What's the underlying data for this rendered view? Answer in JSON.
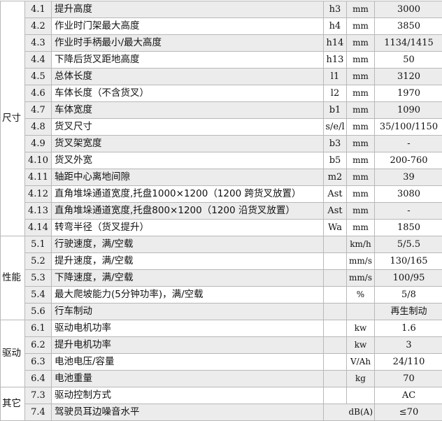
{
  "groups": [
    {
      "label": "尺寸",
      "rows": [
        {
          "no": "4.1",
          "desc": "提升高度",
          "sym": "h3",
          "unit": "mm",
          "val": "3000"
        },
        {
          "no": "4.2",
          "desc": "作业时门架最大高度",
          "sym": "h4",
          "unit": "mm",
          "val": "3850"
        },
        {
          "no": "4.3",
          "desc": "作业时手柄最小/最大高度",
          "sym": "h14",
          "unit": "mm",
          "val": "1134/1415"
        },
        {
          "no": "4.4",
          "desc": "下降后货叉距地高度",
          "sym": "h13",
          "unit": "mm",
          "val": "50"
        },
        {
          "no": "4.5",
          "desc": "总体长度",
          "sym": "l1",
          "unit": "mm",
          "val": "3120"
        },
        {
          "no": "4.6",
          "desc": "车体长度（不含货叉）",
          "sym": "l2",
          "unit": "mm",
          "val": "1970"
        },
        {
          "no": "4.7",
          "desc": "车体宽度",
          "sym": "b1",
          "unit": "mm",
          "val": "1090"
        },
        {
          "no": "4.8",
          "desc": "货叉尺寸",
          "sym": "s/e/l",
          "unit": "mm",
          "val": "35/100/1150"
        },
        {
          "no": "4.9",
          "desc": "货叉架宽度",
          "sym": "b3",
          "unit": "mm",
          "val": "-"
        },
        {
          "no": "4.10",
          "desc": "货叉外宽",
          "sym": "b5",
          "unit": "mm",
          "val": "200-760"
        },
        {
          "no": "4.11",
          "desc": "轴距中心离地间隙",
          "sym": "m2",
          "unit": "mm",
          "val": "39"
        },
        {
          "no": "4.12",
          "desc": "直角堆垛通道宽度,托盘1000×1200（1200 跨货叉放置）",
          "sym": "Ast",
          "unit": "mm",
          "val": "3080"
        },
        {
          "no": "4.13",
          "desc": "直角堆垛通道宽度,托盘800×1200（1200 沿货叉放置）",
          "sym": "Ast",
          "unit": "mm",
          "val": "-"
        },
        {
          "no": "4.14",
          "desc": "转弯半径（货叉提升）",
          "sym": "Wa",
          "unit": "mm",
          "val": "1850"
        }
      ]
    },
    {
      "label": "性能",
      "rows": [
        {
          "no": "5.1",
          "desc": "行驶速度，满/空载",
          "sym": "",
          "unit": "km/h",
          "val": "5/5.5"
        },
        {
          "no": "5.2",
          "desc": "提升速度，满/空载",
          "sym": "",
          "unit": "mm/s",
          "val": "130/165"
        },
        {
          "no": "5.3",
          "desc": "下降速度，满/空载",
          "sym": "",
          "unit": "mm/s",
          "val": "100/95"
        },
        {
          "no": "5.4",
          "desc": "最大爬坡能力(5分钟功率)，满/空载",
          "sym": "",
          "unit": "%",
          "val": "5/8"
        },
        {
          "no": "5.6",
          "desc": "行车制动",
          "sym": "",
          "unit": "",
          "val": "再生制动"
        }
      ]
    },
    {
      "label": "驱动",
      "rows": [
        {
          "no": "6.1",
          "desc": "驱动电机功率",
          "sym": "",
          "unit": "kw",
          "val": "1.6"
        },
        {
          "no": "6.2",
          "desc": "提升电机功率",
          "sym": "",
          "unit": "kw",
          "val": "3"
        },
        {
          "no": "6.3",
          "desc": "电池电压/容量",
          "sym": "",
          "unit": "V/Ah",
          "val": "24/110"
        },
        {
          "no": "6.4",
          "desc": "电池重量",
          "sym": "",
          "unit": "kg",
          "val": "70"
        }
      ]
    },
    {
      "label": "其它",
      "rows": [
        {
          "no": "7.3",
          "desc": "驱动控制方式",
          "sym": "",
          "unit": "",
          "val": "AC"
        },
        {
          "no": "7.4",
          "desc": "驾驶员耳边噪音水平",
          "sym": "",
          "unit": "dB(A)",
          "val": "≤70"
        }
      ]
    }
  ],
  "colors": {
    "row_shade": "#ececec",
    "grid": "#b8b8b8"
  }
}
